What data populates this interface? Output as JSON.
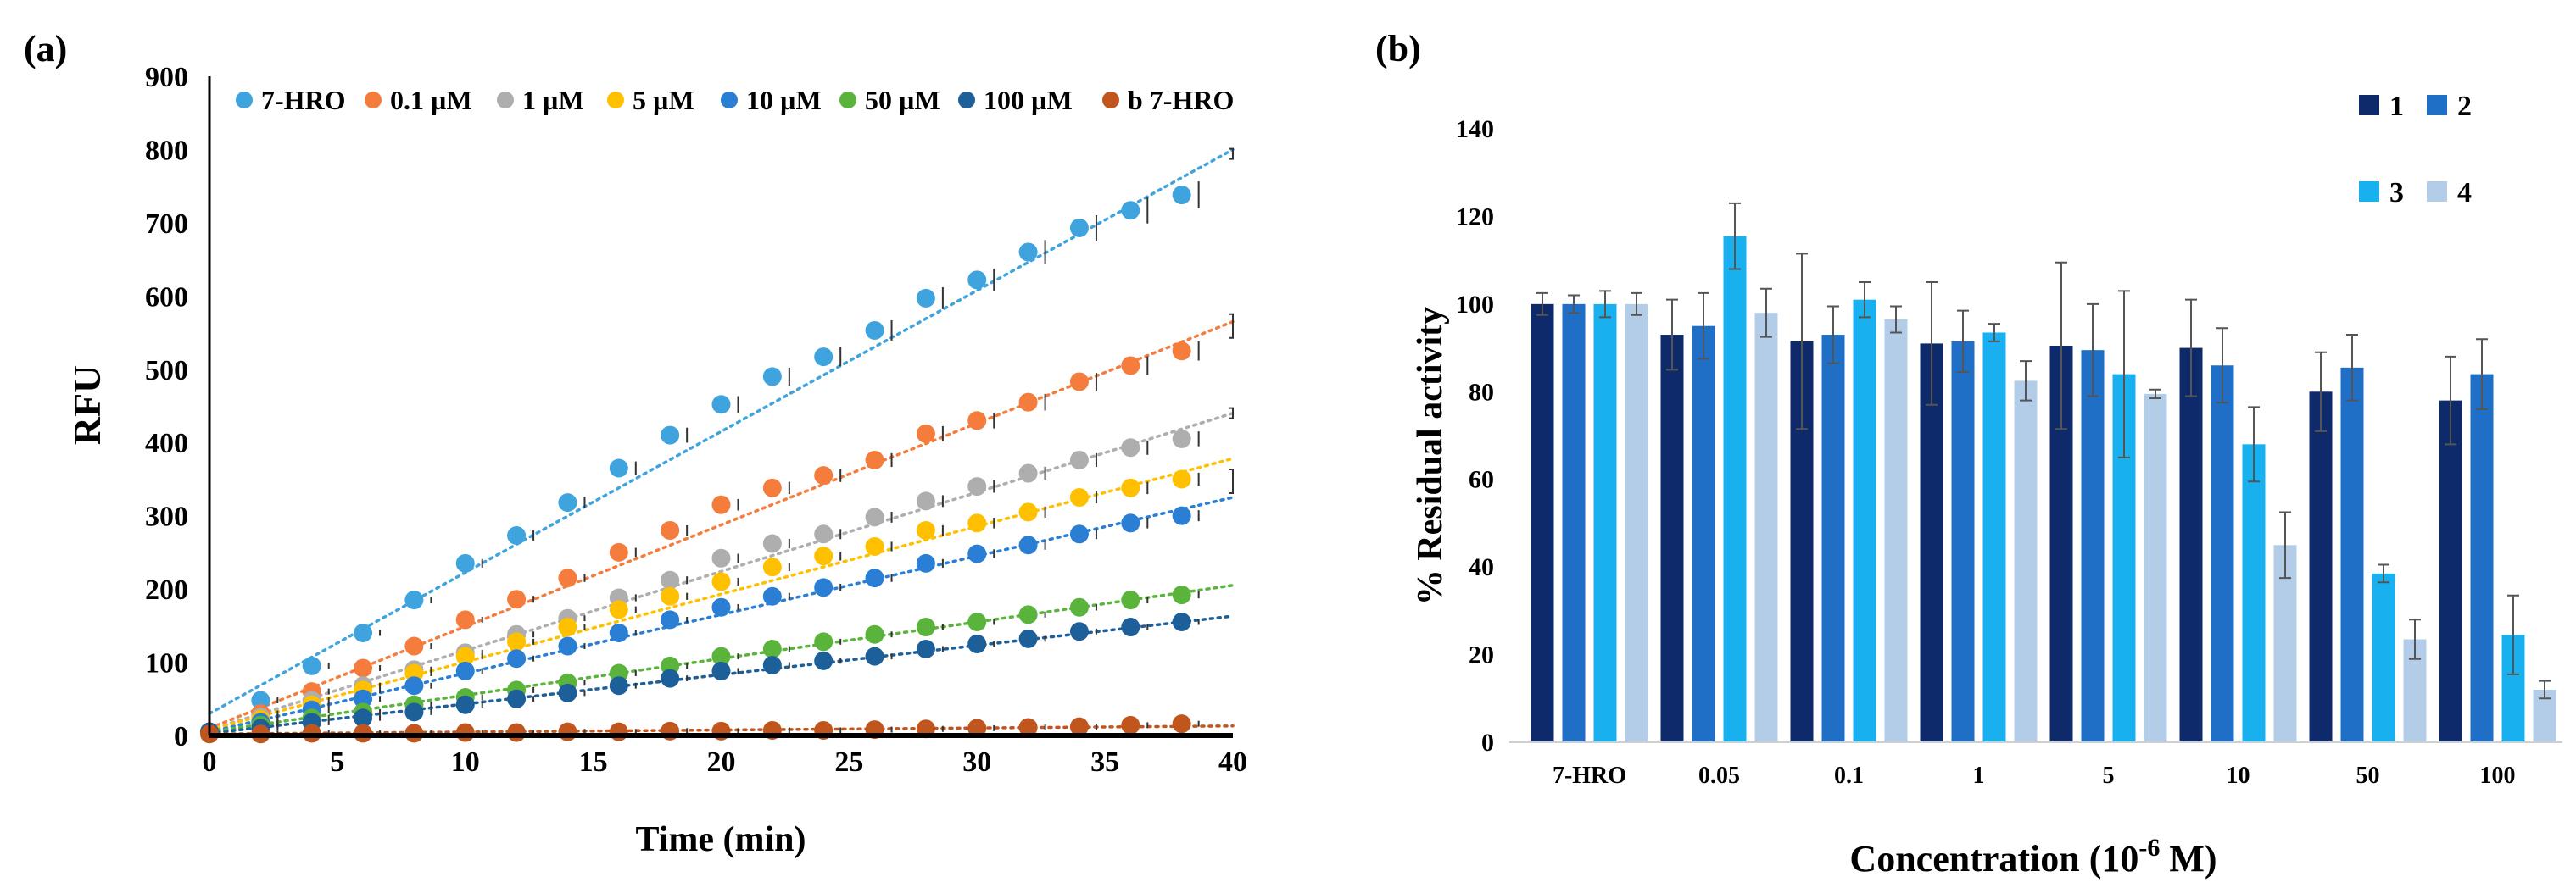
{
  "chart_data": [
    {
      "panel_label": "(a)",
      "type": "scatter",
      "xlabel": "Time (min)",
      "ylabel": "RFU",
      "xlim": [
        0,
        40
      ],
      "ylim": [
        0,
        900
      ],
      "x_ticks": [
        "0",
        "5",
        "10",
        "15",
        "20",
        "25",
        "30",
        "35",
        "40"
      ],
      "y_ticks": [
        "0",
        "100",
        "200",
        "300",
        "400",
        "500",
        "600",
        "700",
        "800",
        "900"
      ],
      "x": [
        0,
        2,
        4,
        6,
        8,
        10,
        12,
        14,
        16,
        18,
        20,
        22,
        24,
        26,
        28,
        30,
        32,
        34,
        36,
        38
      ],
      "legend_position": "top",
      "series": [
        {
          "name": "7-HRO",
          "color": "#3fa4dd",
          "trend": [
            30,
            800
          ],
          "values": [
            5,
            48,
            95,
            140,
            185,
            235,
            273,
            318,
            365,
            410,
            452,
            490,
            517,
            553,
            597,
            622,
            660,
            693,
            717,
            738
          ]
        },
        {
          "name": "0.1 µM",
          "color": "#f47c3c",
          "trend": [
            10,
            565
          ],
          "values": [
            5,
            30,
            60,
            92,
            122,
            158,
            186,
            215,
            250,
            280,
            315,
            338,
            355,
            376,
            412,
            430,
            455,
            483,
            505,
            525
          ]
        },
        {
          "name": "1 µM",
          "color": "#aeaeae",
          "trend": [
            8,
            440
          ],
          "values": [
            5,
            25,
            48,
            68,
            90,
            113,
            138,
            160,
            188,
            212,
            242,
            262,
            275,
            298,
            320,
            340,
            358,
            376,
            393,
            405
          ]
        },
        {
          "name": "5 µM",
          "color": "#ffc000",
          "trend": [
            8,
            378
          ],
          "values": [
            5,
            22,
            42,
            62,
            85,
            108,
            128,
            148,
            172,
            190,
            210,
            230,
            245,
            258,
            280,
            290,
            305,
            325,
            338,
            350
          ]
        },
        {
          "name": "10 µM",
          "color": "#2a7fd4",
          "trend": [
            5,
            325
          ],
          "values": [
            5,
            18,
            35,
            50,
            68,
            88,
            105,
            122,
            140,
            158,
            175,
            190,
            202,
            215,
            235,
            248,
            260,
            275,
            290,
            300
          ]
        },
        {
          "name": "50 µM",
          "color": "#5ab43c",
          "trend": [
            5,
            205
          ],
          "values": [
            5,
            14,
            24,
            32,
            42,
            52,
            62,
            72,
            85,
            95,
            108,
            118,
            128,
            138,
            148,
            155,
            165,
            175,
            185,
            192
          ]
        },
        {
          "name": "100 µM",
          "color": "#1c5f99",
          "trend": [
            3,
            163
          ],
          "values": [
            5,
            10,
            18,
            24,
            32,
            42,
            50,
            58,
            68,
            78,
            88,
            96,
            102,
            108,
            118,
            125,
            132,
            142,
            148,
            155
          ]
        },
        {
          "name": "b 7-HRO",
          "color": "#c0561e",
          "trend": [
            2,
            13
          ],
          "values": [
            2,
            2,
            3,
            3,
            3,
            4,
            4,
            5,
            5,
            6,
            6,
            7,
            7,
            8,
            9,
            10,
            11,
            12,
            14,
            16
          ]
        }
      ]
    },
    {
      "panel_label": "(b)",
      "type": "bar",
      "xlabel": "Concentration (10",
      "xlabel_sup": "-6",
      "xlabel_suffix": " M)",
      "ylabel": "% Residual activity",
      "ylim": [
        0,
        140
      ],
      "y_ticks": [
        "0",
        "20",
        "40",
        "60",
        "80",
        "100",
        "120",
        "140"
      ],
      "categories": [
        "7-HRO",
        "0.05",
        "0.1",
        "1",
        "5",
        "10",
        "50",
        "100"
      ],
      "legend_position": "top-right",
      "series": [
        {
          "name": "1",
          "color": "#0e2a6b",
          "values": [
            100,
            93,
            91.5,
            91,
            90.5,
            90,
            80,
            78
          ],
          "errors": [
            2.5,
            8,
            20,
            14,
            19,
            11,
            9,
            10
          ]
        },
        {
          "name": "2",
          "color": "#1f6fc7",
          "values": [
            100,
            95,
            93,
            91.5,
            89.5,
            86,
            85.5,
            84
          ],
          "errors": [
            2,
            7.5,
            6.5,
            7,
            10.5,
            8.5,
            7.5,
            8
          ]
        },
        {
          "name": "3",
          "color": "#19b0f0",
          "values": [
            100,
            115.5,
            101,
            93.5,
            84,
            68,
            38.5,
            24.5
          ],
          "errors": [
            3,
            7.5,
            4,
            2,
            19,
            8.5,
            2,
            9
          ]
        },
        {
          "name": "4",
          "color": "#b3cde8",
          "values": [
            100,
            98,
            96.5,
            82.5,
            79.5,
            45,
            23.5,
            12
          ],
          "errors": [
            2.5,
            5.5,
            3,
            4.5,
            1,
            7.5,
            4.5,
            2
          ]
        }
      ]
    }
  ]
}
